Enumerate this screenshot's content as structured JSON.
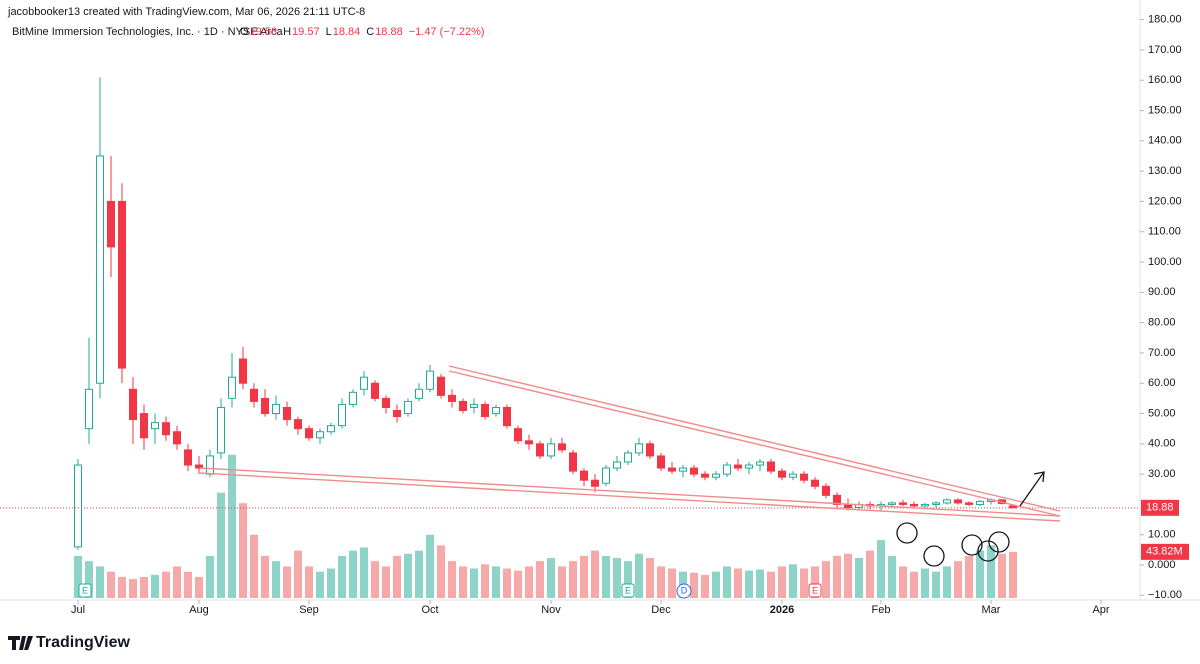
{
  "header": {
    "credit": "jacobbooker13 created with TradingView.com, Mar 06, 2026 21:11 UTC-8",
    "brand": "TradingView"
  },
  "chart_data": {
    "type": "candlestick",
    "title": "BitMine Immersion Technologies, Inc. · 1D · NYSE Arca",
    "ohlc_letters": [
      "O",
      "H",
      "L",
      "C"
    ],
    "change": "−1.47 (−7.22%)",
    "up_color": "#22ab94",
    "down_color": "#f23645",
    "volume_up_color": "#8dd3c7",
    "volume_down_color": "#f7a9a9",
    "open": [
      6,
      45,
      60,
      120,
      120,
      58,
      50,
      45,
      47,
      44,
      38,
      33,
      30,
      37,
      55,
      68,
      58,
      55,
      50,
      52,
      48,
      45,
      42,
      44,
      46,
      53,
      58,
      60,
      55,
      51,
      50,
      55,
      58,
      62,
      56,
      54,
      52,
      53,
      50,
      52,
      45,
      41,
      40,
      36,
      40,
      37,
      31,
      28,
      27,
      32,
      34,
      37,
      40,
      36,
      32,
      31,
      32,
      30,
      29,
      30,
      33,
      32,
      33,
      34,
      31,
      29,
      30,
      28,
      26,
      23,
      20,
      19,
      20,
      19.5,
      20,
      20.5,
      20,
      19.5,
      20,
      20.5,
      21.5,
      20.5,
      20,
      21,
      21.5,
      19.53
    ],
    "high": [
      35,
      75,
      161,
      135,
      126,
      62,
      53,
      50,
      49,
      46,
      40,
      36,
      38,
      55,
      70,
      72,
      60,
      58,
      56,
      54,
      49,
      46,
      45,
      47,
      55,
      58,
      64,
      61,
      56,
      53,
      55,
      60,
      66,
      63,
      58,
      55,
      55,
      54,
      53,
      53,
      46,
      43,
      41,
      42,
      42,
      38,
      32,
      30,
      33,
      36,
      38,
      42,
      41,
      37,
      34,
      33,
      33,
      31,
      31,
      34,
      35,
      34,
      35,
      35,
      32,
      31,
      31,
      29,
      27,
      24,
      22,
      21,
      21,
      21,
      21,
      21.5,
      21,
      20.5,
      21,
      22,
      22,
      21,
      21.5,
      22,
      21.8,
      19.57
    ],
    "low": [
      5,
      40,
      55,
      95,
      60,
      40,
      38,
      40,
      41,
      38,
      31,
      30,
      29,
      35,
      52,
      58,
      52,
      49,
      48,
      46,
      43,
      41,
      40,
      43,
      45,
      52,
      56,
      54,
      50,
      47,
      49,
      54,
      57,
      55,
      52,
      50,
      50,
      48,
      49,
      45,
      40,
      38,
      35,
      35,
      37,
      30,
      26,
      24,
      26,
      31,
      33,
      36,
      35,
      31,
      30,
      29,
      29,
      28,
      28,
      29,
      31,
      30,
      31,
      30,
      28,
      28,
      27,
      25,
      22,
      19,
      18,
      18,
      18.5,
      18,
      19,
      19.5,
      19,
      19,
      19,
      20,
      20,
      19.5,
      19.5,
      20,
      20,
      18.84
    ],
    "close": [
      33,
      58,
      135,
      105,
      65,
      48,
      42,
      47,
      43,
      40,
      33,
      32,
      36,
      52,
      62,
      60,
      54,
      50,
      53,
      48,
      45,
      42,
      44,
      46,
      53,
      57,
      62,
      55,
      52,
      49,
      54,
      58,
      64,
      56,
      54,
      51,
      53,
      49,
      52,
      46,
      41,
      40,
      36,
      40,
      38,
      31,
      28,
      26,
      32,
      34,
      37,
      40,
      36,
      32,
      31,
      32,
      30,
      29,
      30,
      33,
      32,
      33,
      34,
      31,
      29,
      30,
      28,
      26,
      23,
      20,
      19,
      20,
      19.5,
      20,
      20.5,
      20,
      19.5,
      20,
      20.5,
      21.5,
      20.5,
      20,
      21,
      21.5,
      20.3,
      18.88
    ],
    "volume": [
      40,
      35,
      30,
      25,
      20,
      18,
      20,
      22,
      25,
      30,
      25,
      20,
      40,
      100,
      136,
      90,
      60,
      40,
      35,
      30,
      45,
      30,
      25,
      28,
      40,
      45,
      48,
      35,
      30,
      40,
      42,
      45,
      60,
      50,
      35,
      30,
      28,
      32,
      30,
      28,
      26,
      30,
      35,
      38,
      30,
      35,
      40,
      45,
      40,
      38,
      35,
      42,
      38,
      30,
      28,
      25,
      24,
      22,
      25,
      30,
      28,
      26,
      27,
      25,
      30,
      32,
      28,
      30,
      35,
      40,
      42,
      38,
      45,
      55,
      40,
      30,
      25,
      28,
      25,
      30,
      35,
      40,
      45,
      50,
      42,
      43.82
    ],
    "volume_label": "43.82M",
    "ylim": [
      -12,
      181
    ],
    "vlim": [
      0,
      150
    ],
    "yticks": [
      {
        "value": 180,
        "label": "180.00"
      },
      {
        "value": 170,
        "label": "170.00"
      },
      {
        "value": 160,
        "label": "160.00"
      },
      {
        "value": 150,
        "label": "150.00"
      },
      {
        "value": 140,
        "label": "140.00"
      },
      {
        "value": 130,
        "label": "130.00"
      },
      {
        "value": 120,
        "label": "120.00"
      },
      {
        "value": 110,
        "label": "110.00"
      },
      {
        "value": 100,
        "label": "100.00"
      },
      {
        "value": 90,
        "label": "90.00"
      },
      {
        "value": 80,
        "label": "80.00"
      },
      {
        "value": 70,
        "label": "70.00"
      },
      {
        "value": 60,
        "label": "60.00"
      },
      {
        "value": 50,
        "label": "50.00"
      },
      {
        "value": 40,
        "label": "40.00"
      },
      {
        "value": 30,
        "label": "30.00"
      },
      {
        "value": 10,
        "label": "10.00"
      },
      {
        "value": 0,
        "label": "0.000"
      },
      {
        "value": -10,
        "label": "−10.00"
      }
    ],
    "xticks": [
      {
        "value": 0,
        "label": "Jul"
      },
      {
        "value": 11,
        "label": "Aug"
      },
      {
        "value": 21,
        "label": "Sep"
      },
      {
        "value": 32,
        "label": "Oct"
      },
      {
        "value": 43,
        "label": "Nov"
      },
      {
        "value": 53,
        "label": "Dec"
      },
      {
        "value": 64,
        "label": "2026"
      },
      {
        "value": 73,
        "label": "Feb"
      },
      {
        "value": 83,
        "label": "Mar"
      },
      {
        "value": 93,
        "label": "Apr"
      }
    ],
    "event_markers": [
      "E",
      "E",
      "D",
      "E"
    ],
    "grid": false
  }
}
